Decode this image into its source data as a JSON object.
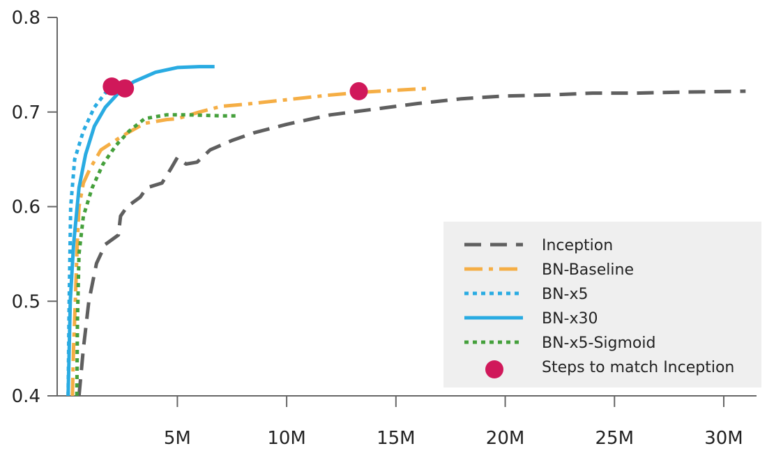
{
  "chart_data": {
    "type": "line",
    "xlim": [
      -500000,
      31500000
    ],
    "ylim": [
      0.4,
      0.8
    ],
    "x_ticks": [
      {
        "value": 5000000,
        "label": "5M"
      },
      {
        "value": 10000000,
        "label": "10M"
      },
      {
        "value": 15000000,
        "label": "15M"
      },
      {
        "value": 20000000,
        "label": "20M"
      },
      {
        "value": 25000000,
        "label": "25M"
      },
      {
        "value": 30000000,
        "label": "30M"
      }
    ],
    "y_ticks": [
      {
        "value": 0.4,
        "label": "0.4"
      },
      {
        "value": 0.5,
        "label": "0.5"
      },
      {
        "value": 0.6,
        "label": "0.6"
      },
      {
        "value": 0.7,
        "label": "0.7"
      },
      {
        "value": 0.8,
        "label": "0.8"
      }
    ],
    "grid": false,
    "legend_position": "bottom-right",
    "series": [
      {
        "name": "Inception",
        "color": "#5f5f5f",
        "style": "dashed",
        "points": [
          [
            500000,
            0.4
          ],
          [
            700000,
            0.45
          ],
          [
            950000,
            0.5
          ],
          [
            1300000,
            0.54
          ],
          [
            1700000,
            0.56
          ],
          [
            2300000,
            0.57
          ],
          [
            2400000,
            0.59
          ],
          [
            2700000,
            0.6
          ],
          [
            3300000,
            0.61
          ],
          [
            3600000,
            0.62
          ],
          [
            4300000,
            0.625
          ],
          [
            4700000,
            0.64
          ],
          [
            5000000,
            0.652
          ],
          [
            5400000,
            0.645
          ],
          [
            5900000,
            0.647
          ],
          [
            6500000,
            0.66
          ],
          [
            7500000,
            0.67
          ],
          [
            8500000,
            0.678
          ],
          [
            10000000,
            0.687
          ],
          [
            12000000,
            0.697
          ],
          [
            14000000,
            0.703
          ],
          [
            16000000,
            0.709
          ],
          [
            18000000,
            0.714
          ],
          [
            20000000,
            0.717
          ],
          [
            22000000,
            0.718
          ],
          [
            24000000,
            0.72
          ],
          [
            26000000,
            0.72
          ],
          [
            28000000,
            0.721
          ],
          [
            31000000,
            0.722
          ]
        ]
      },
      {
        "name": "BN-Baseline",
        "color": "#f5ae45",
        "style": "dashdot",
        "points": [
          [
            200000,
            0.4
          ],
          [
            250000,
            0.45
          ],
          [
            330000,
            0.5
          ],
          [
            420000,
            0.56
          ],
          [
            500000,
            0.6
          ],
          [
            700000,
            0.625
          ],
          [
            1000000,
            0.64
          ],
          [
            1500000,
            0.66
          ],
          [
            2500000,
            0.675
          ],
          [
            3500000,
            0.688
          ],
          [
            4500000,
            0.692
          ],
          [
            5000000,
            0.693
          ],
          [
            6000000,
            0.7
          ],
          [
            7000000,
            0.706
          ],
          [
            8000000,
            0.708
          ],
          [
            10000000,
            0.713
          ],
          [
            12000000,
            0.718
          ],
          [
            13500000,
            0.721
          ],
          [
            15000000,
            0.723
          ],
          [
            16500000,
            0.725
          ]
        ]
      },
      {
        "name": "BN-x5",
        "color": "#29abe2",
        "style": "dotted",
        "points": [
          [
            0,
            0.4
          ],
          [
            50000,
            0.5
          ],
          [
            120000,
            0.6
          ],
          [
            300000,
            0.65
          ],
          [
            700000,
            0.68
          ],
          [
            1200000,
            0.705
          ],
          [
            1700000,
            0.72
          ],
          [
            2000000,
            0.728
          ]
        ]
      },
      {
        "name": "BN-x30",
        "color": "#29abe2",
        "style": "solid",
        "points": [
          [
            0,
            0.4
          ],
          [
            100000,
            0.5
          ],
          [
            250000,
            0.56
          ],
          [
            500000,
            0.62
          ],
          [
            800000,
            0.655
          ],
          [
            1200000,
            0.685
          ],
          [
            1700000,
            0.705
          ],
          [
            2300000,
            0.72
          ],
          [
            3000000,
            0.732
          ],
          [
            4000000,
            0.742
          ],
          [
            5000000,
            0.747
          ],
          [
            6000000,
            0.748
          ],
          [
            6700000,
            0.748
          ]
        ]
      },
      {
        "name": "BN-x5-Sigmoid",
        "color": "#45a03c",
        "style": "dotted",
        "points": [
          [
            400000,
            0.4
          ],
          [
            430000,
            0.48
          ],
          [
            500000,
            0.55
          ],
          [
            700000,
            0.59
          ],
          [
            1100000,
            0.62
          ],
          [
            1600000,
            0.645
          ],
          [
            2200000,
            0.665
          ],
          [
            2800000,
            0.68
          ],
          [
            3500000,
            0.693
          ],
          [
            4500000,
            0.697
          ],
          [
            5500000,
            0.697
          ],
          [
            7000000,
            0.696
          ],
          [
            7800000,
            0.696
          ]
        ]
      }
    ],
    "markers": {
      "name": "Steps to match Inception",
      "color": "#d0185a",
      "points": [
        [
          2000000,
          0.727
        ],
        [
          2600000,
          0.725
        ],
        [
          13300000,
          0.722
        ]
      ]
    }
  },
  "legend": {
    "items": [
      {
        "label": "Inception",
        "color": "#5f5f5f",
        "style": "dashed"
      },
      {
        "label": "BN-Baseline",
        "color": "#f5ae45",
        "style": "dashdot"
      },
      {
        "label": "BN-x5",
        "color": "#29abe2",
        "style": "dotted"
      },
      {
        "label": "BN-x30",
        "color": "#29abe2",
        "style": "solid"
      },
      {
        "label": "BN-x5-Sigmoid",
        "color": "#45a03c",
        "style": "dotted"
      },
      {
        "label": "Steps to match Inception",
        "color": "#d0185a",
        "style": "marker"
      }
    ]
  }
}
